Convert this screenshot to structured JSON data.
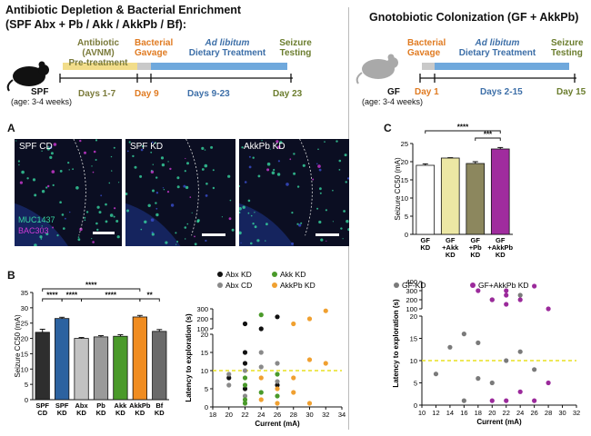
{
  "left_header": {
    "title": "Antibiotic Depletion & Bacterial Enrichment",
    "subtitle": "(SPF Abx + Pb / Akk / AkkPb / Bf):",
    "mouse_label": "SPF",
    "mouse_age": "(age: 3-4 weeks)",
    "stages": [
      {
        "label": "Antibiotic (AVNM)",
        "label2": "Pre-treatment",
        "color": "#7a7a3a"
      },
      {
        "label": "Bacterial",
        "label2": "Gavage",
        "color": "#e07b22"
      },
      {
        "label": "Ad libitum",
        "label2": "Dietary Treatment",
        "color": "#3d6fa8"
      },
      {
        "label": "Seizure",
        "label2": "Testing",
        "color": "#6b7d2e"
      }
    ],
    "days": [
      "Days 1-7",
      "Day 9",
      "Days 9-23",
      "Day 23"
    ]
  },
  "right_header": {
    "title": "Gnotobiotic Colonization (GF + AkkPb)",
    "mouse_label": "GF",
    "mouse_age": "(age: 3-4 weeks)",
    "stages": [
      {
        "label": "Bacterial",
        "label2": "Gavage",
        "color": "#e07b22"
      },
      {
        "label": "Ad libitum",
        "label2": "Dietary Treatment",
        "color": "#3d6fa8"
      },
      {
        "label": "Seizure",
        "label2": "Testing",
        "color": "#6b7d2e"
      }
    ],
    "days": [
      "Day 1",
      "Days 2-15",
      "Day 15"
    ]
  },
  "panel_a": {
    "letter": "A",
    "images": [
      "SPF CD",
      "SPF KD",
      "AkkPb KD"
    ],
    "stain1": "MUC1437",
    "stain2": "BAC303",
    "colors": {
      "stain1": "#37d6a0",
      "stain2": "#d13ad6"
    }
  },
  "panel_b": {
    "letter": "B",
    "ylabel": "Seizure CC50 (mA)",
    "sig": [
      "****",
      "****",
      "****",
      "****",
      "**"
    ]
  },
  "panel_b_scatter": {
    "ylabel": "Latency to exploration (s)",
    "xlabel": "Current (mA)",
    "legend": [
      {
        "name": "Abx KD",
        "color": "#111111"
      },
      {
        "name": "Akk KD",
        "color": "#4a9a2a"
      },
      {
        "name": "Abx CD",
        "color": "#8a8a8a"
      },
      {
        "name": "AkkPb KD",
        "color": "#f0a030"
      }
    ]
  },
  "panel_c": {
    "letter": "C",
    "ylabel": "Seizure CC50 (mA)",
    "sig": [
      "****",
      "***"
    ]
  },
  "panel_c_scatter": {
    "ylabel": "Latency to exploration (s)",
    "xlabel": "Current (mA)",
    "legend": [
      {
        "name": "GF-KD",
        "color": "#7a7a7a"
      },
      {
        "name": "GF+AkkPb KD",
        "color": "#9b2a9b"
      }
    ]
  },
  "chart_data": [
    {
      "type": "bar",
      "categories": [
        "SPF CD",
        "SPF KD",
        "Abx KD",
        "Pb KD",
        "Akk KD",
        "AkkPb KD",
        "Bf KD"
      ],
      "values": [
        22,
        26.5,
        20,
        20.5,
        20.7,
        27,
        22.3
      ],
      "errors": [
        1.0,
        0.4,
        0.3,
        0.4,
        0.5,
        0.5,
        0.6
      ],
      "colors": [
        "#2e2e2e",
        "#2c62a0",
        "#c2c2c2",
        "#9a9a9a",
        "#4a9a2a",
        "#f08c20",
        "#6a6a6a"
      ],
      "ylabel": "Seizure CC50 (mA)",
      "ylim": [
        0,
        35
      ],
      "yticks": [
        0,
        5,
        10,
        15,
        20,
        25,
        30,
        35
      ],
      "significance": [
        {
          "from": 0,
          "to": 1,
          "label": "****"
        },
        {
          "from": 1,
          "to": 2,
          "label": "****"
        },
        {
          "from": 0,
          "to": 5,
          "label": "****"
        },
        {
          "from": 2,
          "to": 5,
          "label": "****"
        },
        {
          "from": 5,
          "to": 6,
          "label": "**"
        }
      ]
    },
    {
      "type": "scatter",
      "xlabel": "Current (mA)",
      "ylabel": "Latency to exploration (s)",
      "xlim": [
        18,
        34
      ],
      "xticks": [
        18,
        20,
        22,
        24,
        26,
        28,
        30,
        32,
        34
      ],
      "yticks_low": [
        0,
        5,
        10,
        15,
        20
      ],
      "yticks_high": [
        100,
        200,
        300
      ],
      "threshold": 10,
      "series": [
        {
          "name": "Abx KD",
          "color": "#111111",
          "points": [
            [
              20,
              8
            ],
            [
              22,
              5
            ],
            [
              22,
              12
            ],
            [
              22,
              15
            ],
            [
              22,
              150
            ],
            [
              24,
              100
            ],
            [
              26,
              220
            ],
            [
              26,
              6
            ]
          ]
        },
        {
          "name": "Abx CD",
          "color": "#8a8a8a",
          "points": [
            [
              20,
              9
            ],
            [
              20,
              6
            ],
            [
              22,
              10
            ],
            [
              22,
              3
            ],
            [
              24,
              11
            ],
            [
              24,
              15
            ],
            [
              26,
              7
            ],
            [
              26,
              12
            ]
          ]
        },
        {
          "name": "Akk KD",
          "color": "#4a9a2a",
          "points": [
            [
              22,
              6
            ],
            [
              22,
              2
            ],
            [
              22,
              8
            ],
            [
              22,
              1
            ],
            [
              24,
              4
            ],
            [
              24,
              240
            ],
            [
              26,
              3
            ],
            [
              26,
              9
            ]
          ]
        },
        {
          "name": "AkkPb KD",
          "color": "#f0a030",
          "points": [
            [
              24,
              2
            ],
            [
              24,
              8
            ],
            [
              26,
              5
            ],
            [
              26,
              1
            ],
            [
              28,
              8
            ],
            [
              28,
              150
            ],
            [
              30,
              1
            ],
            [
              30,
              13
            ],
            [
              30,
              200
            ],
            [
              32,
              12
            ],
            [
              32,
              280
            ],
            [
              28,
              4
            ]
          ]
        }
      ]
    },
    {
      "type": "bar",
      "categories": [
        "GF KD",
        "GF +Akk KD",
        "GF +Pb KD",
        "GF +AkkPb KD"
      ],
      "values": [
        19,
        21,
        19.5,
        23.5
      ],
      "errors": [
        0.4,
        0.1,
        0.5,
        0.4
      ],
      "colors": [
        "#ffffff",
        "#ece7a4",
        "#8c875e",
        "#a02c9e"
      ],
      "ylabel": "Seizure CC50 (mA)",
      "ylim": [
        0,
        25
      ],
      "yticks": [
        0,
        5,
        10,
        15,
        20,
        25
      ],
      "significance": [
        {
          "from": 0,
          "to": 3,
          "label": "****"
        },
        {
          "from": 2,
          "to": 3,
          "label": "***"
        }
      ]
    },
    {
      "type": "scatter",
      "xlabel": "Current (mA)",
      "ylabel": "Latency to exploration (s)",
      "xlim": [
        10,
        32
      ],
      "xticks": [
        10,
        12,
        14,
        16,
        18,
        20,
        22,
        24,
        26,
        28,
        30,
        32
      ],
      "yticks_low": [
        0,
        5,
        10,
        15,
        20
      ],
      "yticks_high": [
        100,
        200,
        300,
        400
      ],
      "threshold": 10,
      "series": [
        {
          "name": "GF-KD",
          "color": "#7a7a7a",
          "points": [
            [
              12,
              7
            ],
            [
              14,
              13
            ],
            [
              16,
              16
            ],
            [
              16,
              1
            ],
            [
              18,
              14
            ],
            [
              18,
              6
            ],
            [
              20,
              5
            ],
            [
              20,
              200
            ],
            [
              22,
              10
            ],
            [
              24,
              12
            ],
            [
              24,
              250
            ],
            [
              26,
              8
            ]
          ]
        },
        {
          "name": "GF+AkkPb KD",
          "color": "#9b2a9b",
          "points": [
            [
              18,
              300
            ],
            [
              20,
              200
            ],
            [
              22,
              150
            ],
            [
              22,
              250
            ],
            [
              22,
              1
            ],
            [
              24,
              3
            ],
            [
              24,
              200
            ],
            [
              26,
              350
            ],
            [
              26,
              1
            ],
            [
              28,
              100
            ],
            [
              28,
              5
            ],
            [
              20,
              1
            ],
            [
              22,
              300
            ]
          ]
        }
      ]
    }
  ]
}
